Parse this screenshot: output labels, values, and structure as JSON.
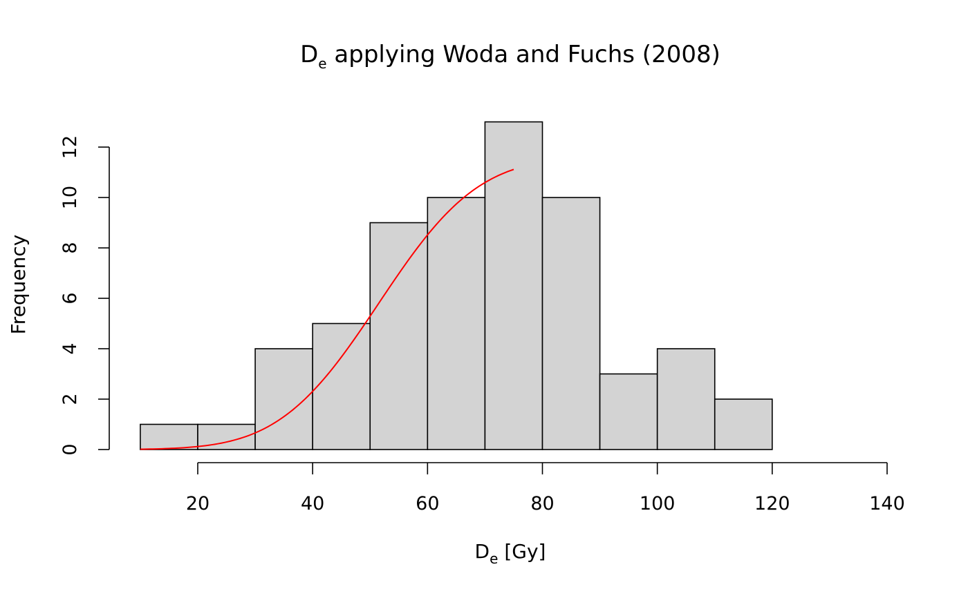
{
  "chart_data": {
    "type": "bar",
    "title_main": "D",
    "title_sub": "e",
    "title_rest": " applying Woda and Fuchs (2008)",
    "xlabel_main": "D",
    "xlabel_sub": "e",
    "xlabel_rest": " [Gy]",
    "ylabel": "Frequency",
    "bin_edges": [
      10,
      20,
      30,
      40,
      50,
      60,
      70,
      80,
      90,
      100,
      110,
      120
    ],
    "values": [
      1,
      1,
      4,
      5,
      9,
      10,
      13,
      10,
      3,
      4,
      2
    ],
    "x_ticks": [
      "20",
      "40",
      "60",
      "80",
      "100",
      "120",
      "140"
    ],
    "x_tick_values": [
      20,
      40,
      60,
      80,
      100,
      120,
      140
    ],
    "y_ticks": [
      "0",
      "2",
      "4",
      "6",
      "8",
      "10",
      "12"
    ],
    "y_tick_values": [
      0,
      2,
      4,
      6,
      8,
      10,
      12
    ],
    "xlim": [
      20,
      140
    ],
    "ylim": [
      0,
      12
    ],
    "bar_fill": "#d3d3d3",
    "bar_stroke": "#000000",
    "curve_color": "#ff0000",
    "curve": {
      "type": "normal-cdf",
      "x_range": [
        10,
        75
      ],
      "mean": 51.5,
      "sd": 13.6,
      "scale": 11.6
    },
    "grid": false
  }
}
